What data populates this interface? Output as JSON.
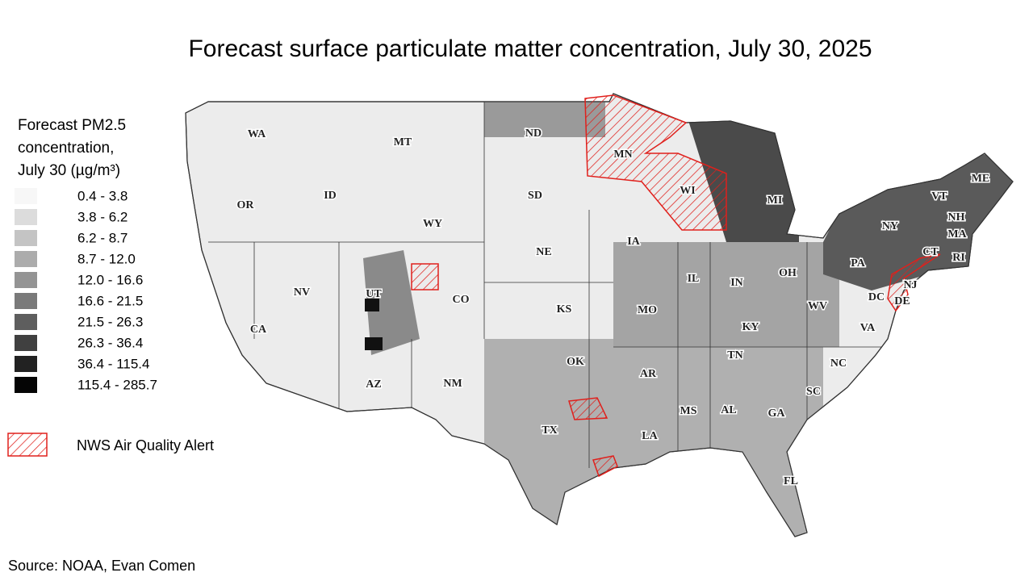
{
  "title": "Forecast surface particulate matter concentration, July 30, 2025",
  "legend": {
    "title_lines": [
      "Forecast PM2.5",
      "concentration,",
      "July 30 (µg/m³)"
    ],
    "items": [
      {
        "label": "0.4 - 3.8",
        "color": "#f7f7f7"
      },
      {
        "label": "3.8 - 6.2",
        "color": "#dcdcdc"
      },
      {
        "label": "6.2 - 8.7",
        "color": "#c4c4c4"
      },
      {
        "label": "8.7 - 12.0",
        "color": "#acacac"
      },
      {
        "label": "12.0 - 16.6",
        "color": "#949494"
      },
      {
        "label": "16.6 - 21.5",
        "color": "#7a7a7a"
      },
      {
        "label": "21.5 - 26.3",
        "color": "#5e5e5e"
      },
      {
        "label": "26.3 - 36.4",
        "color": "#404040"
      },
      {
        "label": "36.4 - 115.4",
        "color": "#222222"
      },
      {
        "label": "115.4 - 285.7",
        "color": "#050505"
      }
    ],
    "alert": "NWS Air Quality Alert"
  },
  "states": [
    "WA",
    "MT",
    "ND",
    "MN",
    "OR",
    "ID",
    "WY",
    "SD",
    "WI",
    "MI",
    "ME",
    "VT",
    "NH",
    "NY",
    "MA",
    "IA",
    "NE",
    "NV",
    "UT",
    "CO",
    "CT",
    "RI",
    "PA",
    "OH",
    "IL",
    "IN",
    "NJ",
    "KS",
    "MO",
    "DC",
    "DE",
    "WV",
    "CA",
    "KY",
    "VA",
    "TN",
    "NC",
    "OK",
    "AR",
    "AZ",
    "NM",
    "SC",
    "TX",
    "MS",
    "AL",
    "GA",
    "LA",
    "FL"
  ],
  "source": "Source: NOAA, Evan Comen"
}
